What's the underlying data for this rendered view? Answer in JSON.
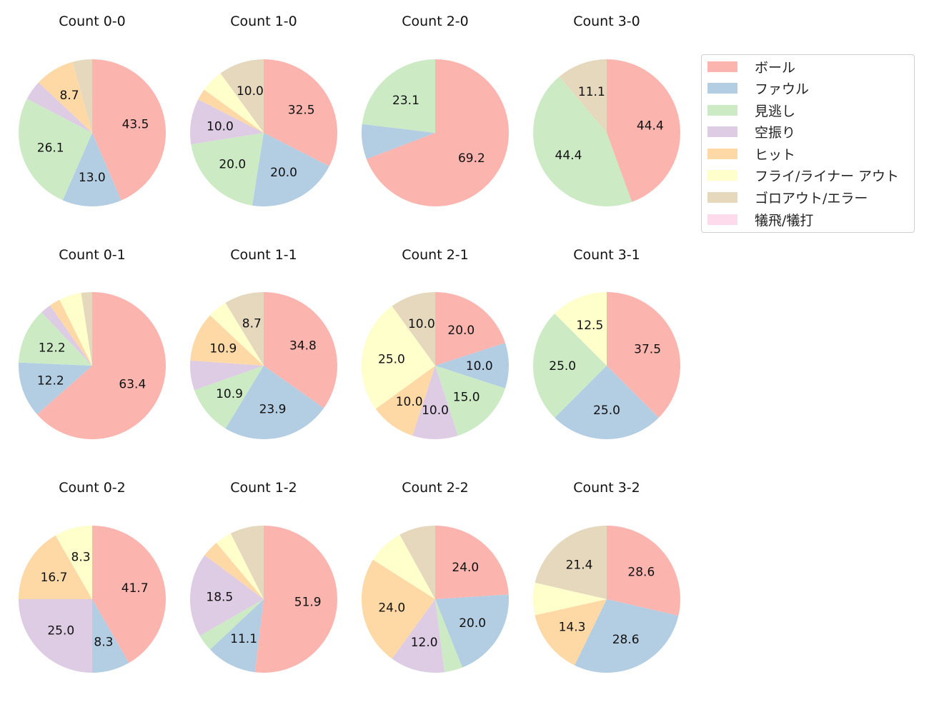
{
  "chart_data": [
    {
      "type": "pie",
      "title": "Count 0-0",
      "values": [
        43.5,
        13.0,
        26.1,
        4.3,
        8.7,
        0,
        4.3,
        0
      ]
    },
    {
      "type": "pie",
      "title": "Count 1-0",
      "values": [
        32.5,
        20.0,
        20.0,
        10.0,
        2.5,
        5.0,
        10.0,
        0
      ]
    },
    {
      "type": "pie",
      "title": "Count 2-0",
      "values": [
        69.2,
        7.7,
        23.1,
        0,
        0,
        0,
        0,
        0
      ]
    },
    {
      "type": "pie",
      "title": "Count 3-0",
      "values": [
        44.4,
        0,
        44.4,
        0,
        0,
        0,
        11.1,
        0
      ]
    },
    {
      "type": "pie",
      "title": "Count 0-1",
      "values": [
        63.4,
        12.2,
        12.2,
        2.4,
        2.4,
        4.9,
        2.4,
        0
      ]
    },
    {
      "type": "pie",
      "title": "Count 1-1",
      "values": [
        34.8,
        23.9,
        10.9,
        6.5,
        10.9,
        4.3,
        8.7,
        0
      ]
    },
    {
      "type": "pie",
      "title": "Count 2-1",
      "values": [
        20.0,
        10.0,
        15.0,
        10.0,
        10.0,
        25.0,
        10.0,
        0
      ]
    },
    {
      "type": "pie",
      "title": "Count 3-1",
      "values": [
        37.5,
        25.0,
        25.0,
        0,
        0,
        12.5,
        0,
        0
      ]
    },
    {
      "type": "pie",
      "title": "Count 0-2",
      "values": [
        41.7,
        8.3,
        0,
        25.0,
        16.7,
        8.3,
        0,
        0
      ]
    },
    {
      "type": "pie",
      "title": "Count 1-2",
      "values": [
        51.9,
        11.1,
        3.7,
        18.5,
        3.7,
        3.7,
        7.4,
        0
      ]
    },
    {
      "type": "pie",
      "title": "Count 2-2",
      "values": [
        24.0,
        20.0,
        4.0,
        12.0,
        24.0,
        8.0,
        8.0,
        0
      ]
    },
    {
      "type": "pie",
      "title": "Count 3-2",
      "values": [
        28.6,
        28.6,
        0,
        0,
        14.3,
        7.1,
        21.4,
        0
      ]
    }
  ],
  "legend": {
    "placement": "top-right",
    "entries": [
      {
        "label": "ボール",
        "color": "#fbb4ae"
      },
      {
        "label": "ファウル",
        "color": "#b3cde3"
      },
      {
        "label": "見逃し",
        "color": "#ccebc5"
      },
      {
        "label": "空振り",
        "color": "#decbe4"
      },
      {
        "label": "ヒット",
        "color": "#fed9a6"
      },
      {
        "label": "フライ/ライナー アウト",
        "color": "#ffffcc"
      },
      {
        "label": "ゴロアウト/エラー",
        "color": "#e5d8bd"
      },
      {
        "label": "犠飛/犠打",
        "color": "#fddaec"
      }
    ]
  }
}
